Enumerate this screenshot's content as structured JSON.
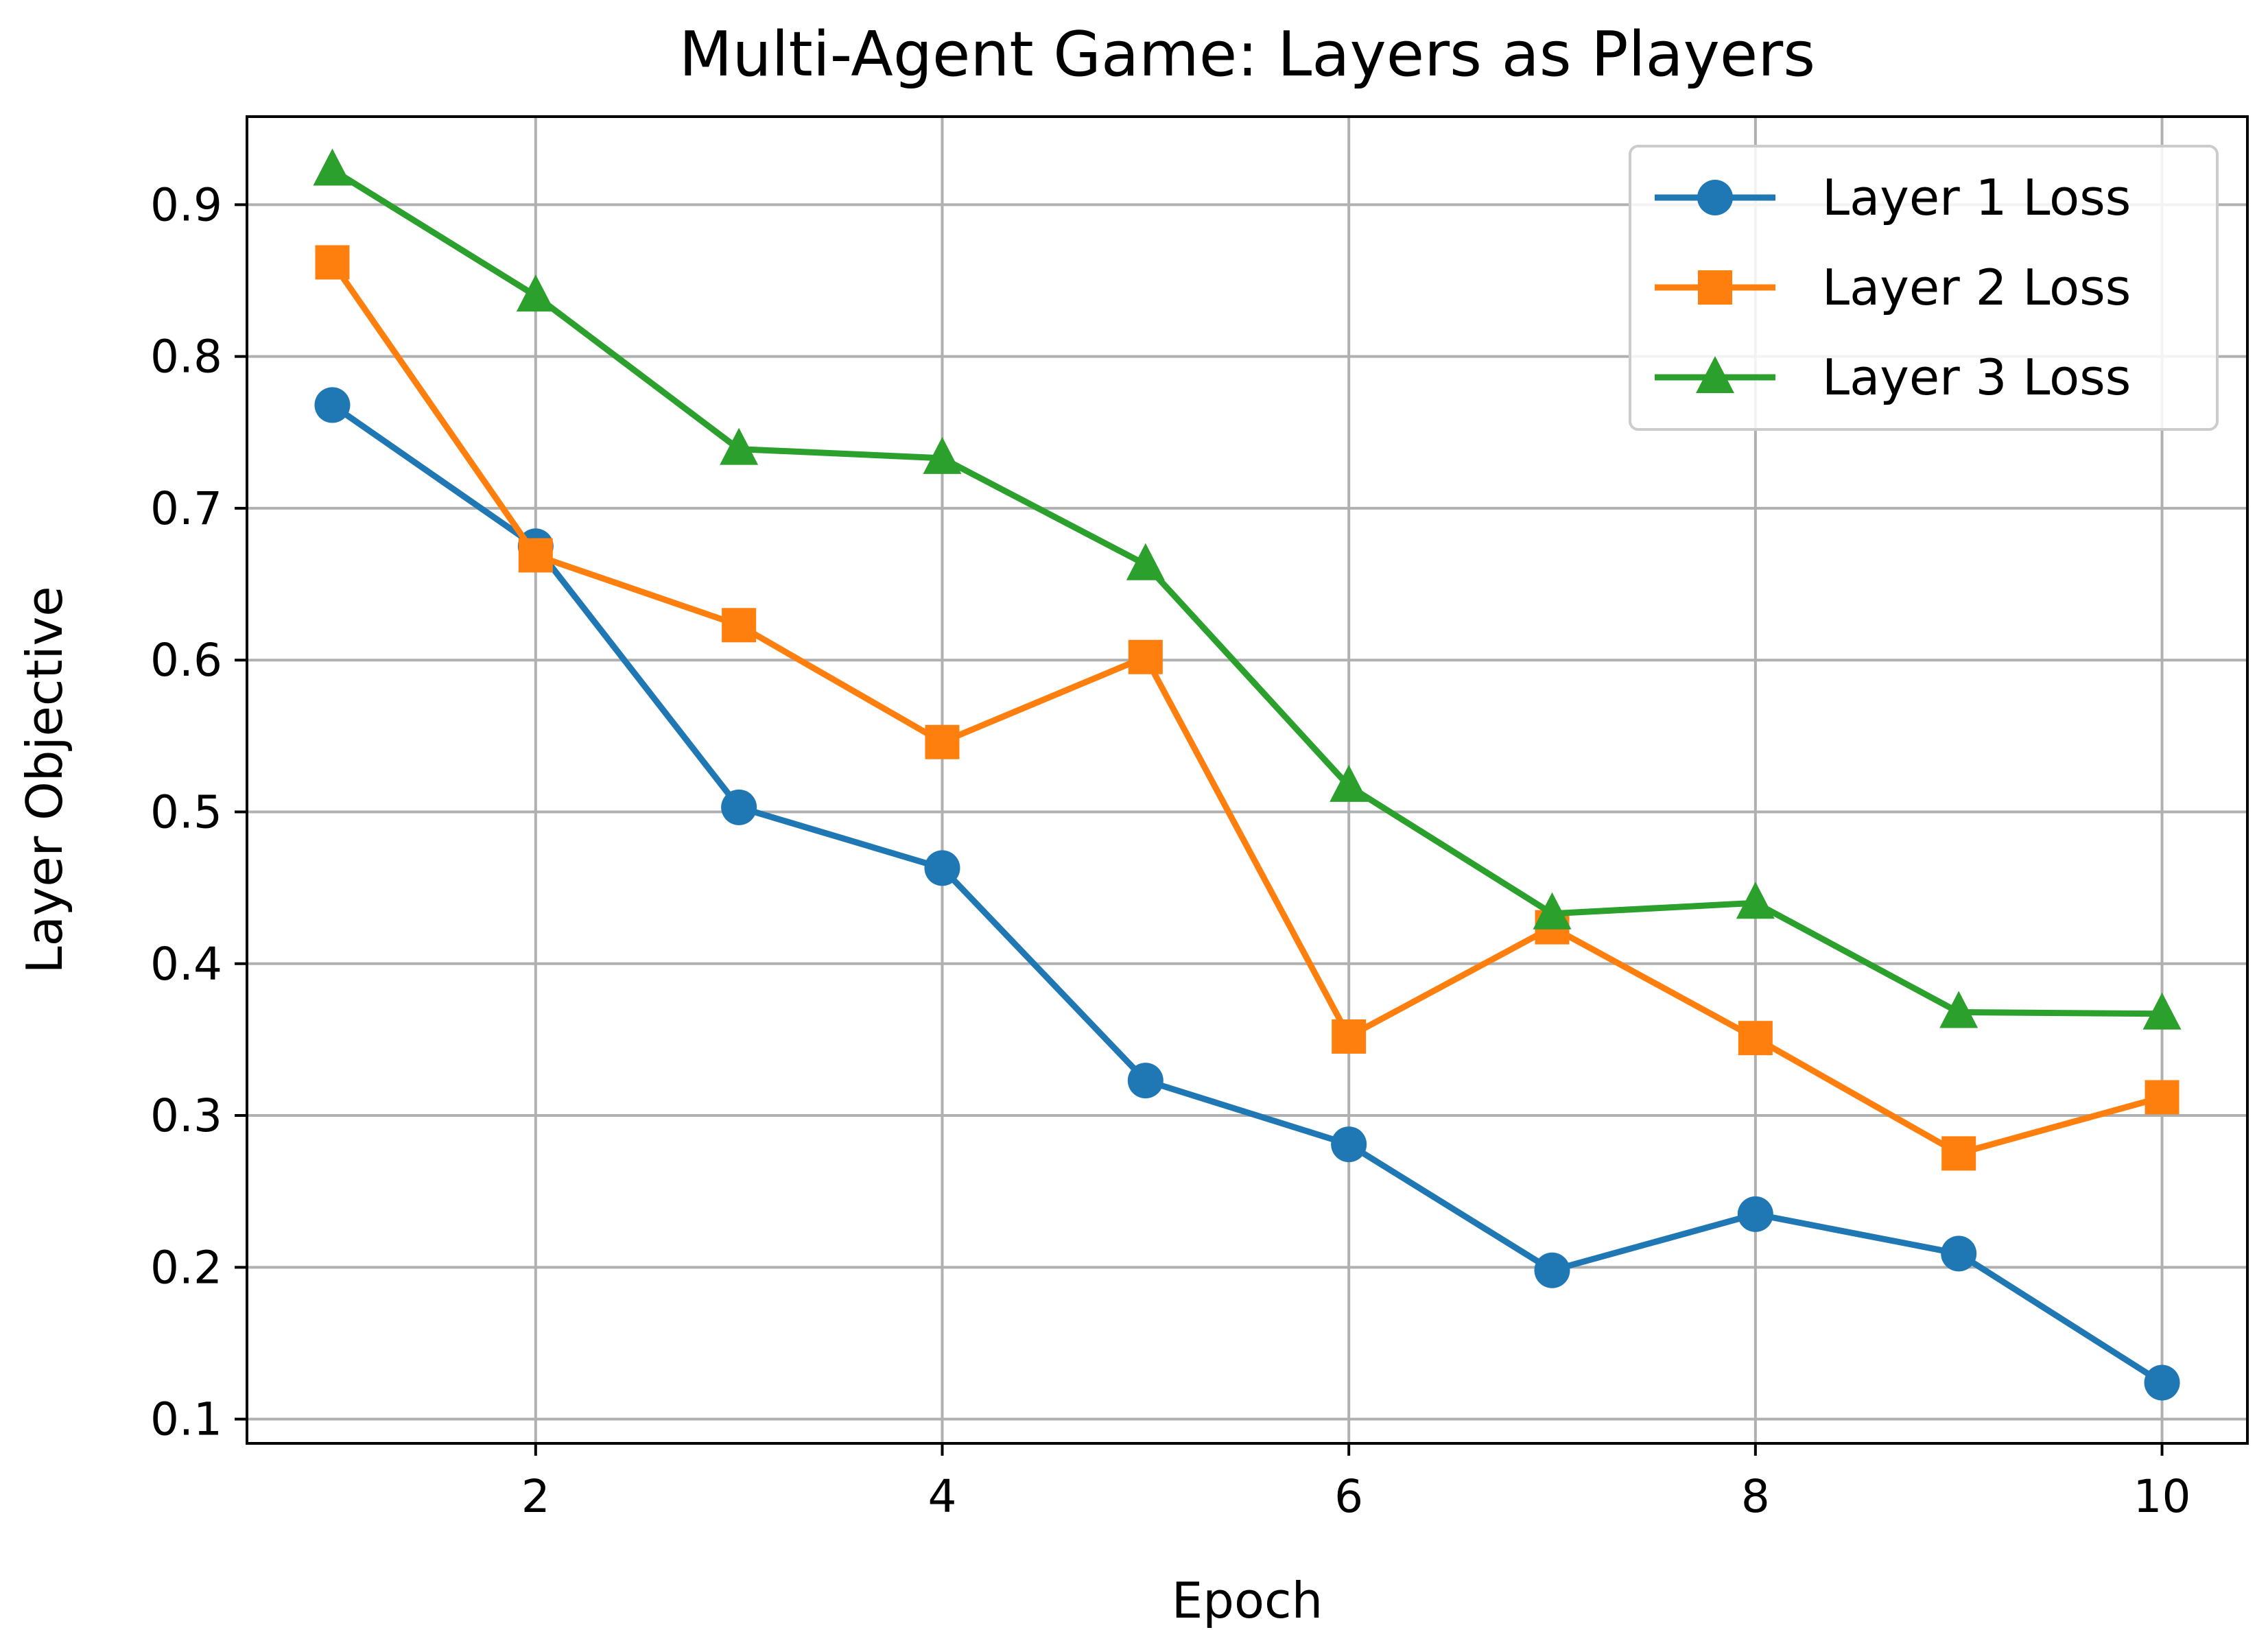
{
  "chart_data": {
    "type": "line",
    "title": "Multi-Agent Game: Layers as Players",
    "xlabel": "Epoch",
    "ylabel": "Layer Objective",
    "x": [
      1,
      2,
      3,
      4,
      5,
      6,
      7,
      8,
      9,
      10
    ],
    "xticks": [
      "2",
      "4",
      "6",
      "8",
      "10"
    ],
    "xtick_values": [
      2,
      4,
      6,
      8,
      10
    ],
    "yticks": [
      "0.1",
      "0.2",
      "0.3",
      "0.4",
      "0.5",
      "0.6",
      "0.7",
      "0.8",
      "0.9"
    ],
    "ytick_values": [
      0.1,
      0.2,
      0.3,
      0.4,
      0.5,
      0.6,
      0.7,
      0.8,
      0.9
    ],
    "xlim": [
      0.58,
      10.42
    ],
    "ylim": [
      0.084,
      0.958
    ],
    "grid": true,
    "legend_position": "top-right",
    "series": [
      {
        "name": "Layer 1 Loss",
        "color": "#1f77b4",
        "marker": "circle",
        "values": [
          0.768,
          0.675,
          0.503,
          0.463,
          0.323,
          0.281,
          0.198,
          0.235,
          0.209,
          0.124
        ]
      },
      {
        "name": "Layer 2 Loss",
        "color": "#ff7f0e",
        "marker": "square",
        "values": [
          0.862,
          0.669,
          0.623,
          0.546,
          0.602,
          0.352,
          0.424,
          0.351,
          0.275,
          0.312
        ]
      },
      {
        "name": "Layer 3 Loss",
        "color": "#2ca02c",
        "marker": "triangle",
        "values": [
          0.923,
          0.84,
          0.739,
          0.733,
          0.663,
          0.517,
          0.433,
          0.44,
          0.368,
          0.367
        ]
      }
    ]
  }
}
